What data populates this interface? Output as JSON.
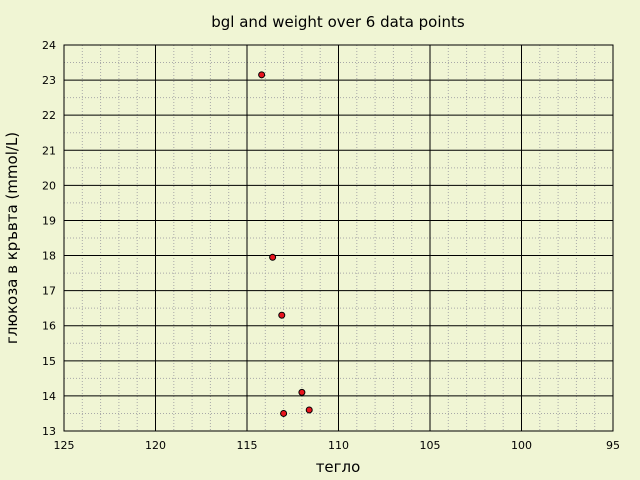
{
  "chart_data": {
    "type": "scatter",
    "title": "bgl and weight over 6 data points",
    "xlabel": "тегло",
    "ylabel": "глюкоза в кръвта (mmol/L)",
    "xlim": [
      125,
      95
    ],
    "ylim": [
      13,
      24
    ],
    "x_reversed": true,
    "x_ticks": [
      125,
      120,
      115,
      110,
      105,
      100,
      95
    ],
    "y_ticks": [
      13,
      14,
      15,
      16,
      17,
      18,
      19,
      20,
      21,
      22,
      23,
      24
    ],
    "grid": true,
    "minor_grid": true,
    "point_color": "#e8141e",
    "points": [
      {
        "x": 114.2,
        "y": 23.15
      },
      {
        "x": 113.6,
        "y": 17.95
      },
      {
        "x": 113.1,
        "y": 16.3
      },
      {
        "x": 112.0,
        "y": 14.1
      },
      {
        "x": 111.6,
        "y": 13.6
      },
      {
        "x": 113.0,
        "y": 13.5
      }
    ]
  }
}
